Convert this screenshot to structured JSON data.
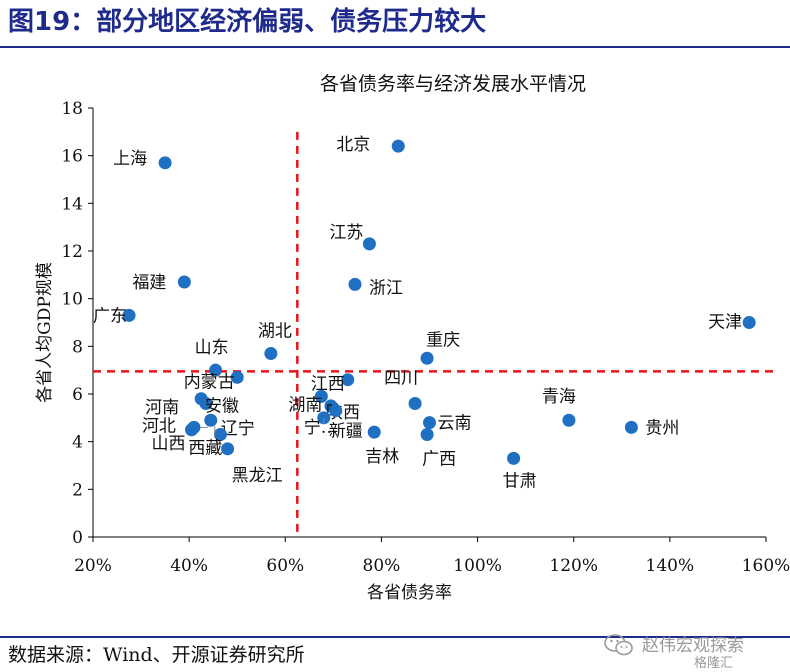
{
  "header": {
    "title": "图19：部分地区经济偏弱、债务压力较大"
  },
  "footer": {
    "source": "数据来源：Wind、开源证券研究所",
    "watermark": "赵伟宏观探索",
    "watermark_sub": "格隆汇",
    "watermark_icon": "wechat-icon"
  },
  "colors": {
    "title": "#1f2b8c",
    "point": "#1f6fc2",
    "refline": "#e8141b",
    "axis": "#000000"
  },
  "chart_data": {
    "type": "scatter",
    "title": "各省债务率与经济发展水平情况",
    "xlabel": "各省债务率",
    "ylabel": "各省人均GDP规模",
    "xlim": [
      20,
      160
    ],
    "ylim": [
      0,
      18
    ],
    "xticks": [
      20,
      40,
      60,
      80,
      100,
      120,
      140,
      160
    ],
    "xtick_labels": [
      "20%",
      "40%",
      "60%",
      "80%",
      "100%",
      "120%",
      "140%",
      "160%"
    ],
    "yticks": [
      0,
      2,
      4,
      6,
      8,
      10,
      12,
      14,
      16,
      18
    ],
    "ytick_labels": [
      "0",
      "2",
      "4",
      "6",
      "8",
      "10",
      "12",
      "14",
      "16",
      "18"
    ],
    "grid": false,
    "reference_lines": {
      "x": 62.5,
      "y": 6.95
    },
    "points": [
      {
        "name": "北京",
        "x": 83.5,
        "y": 16.4
      },
      {
        "name": "上海",
        "x": 35.0,
        "y": 15.7
      },
      {
        "name": "江苏",
        "x": 77.5,
        "y": 12.3
      },
      {
        "name": "福建",
        "x": 39.0,
        "y": 10.7
      },
      {
        "name": "浙江",
        "x": 74.5,
        "y": 10.6
      },
      {
        "name": "广东",
        "x": 27.5,
        "y": 9.3
      },
      {
        "name": "天津",
        "x": 156.5,
        "y": 9.0
      },
      {
        "name": "湖北",
        "x": 57.0,
        "y": 7.7
      },
      {
        "name": "重庆",
        "x": 89.5,
        "y": 7.5
      },
      {
        "name": "山东",
        "x": 45.5,
        "y": 7.0
      },
      {
        "name": "内蒙古",
        "x": 50.0,
        "y": 6.7
      },
      {
        "name": "江西",
        "x": 73.0,
        "y": 6.6
      },
      {
        "name": "河南",
        "x": 42.5,
        "y": 5.8
      },
      {
        "name": "安徽",
        "x": 43.5,
        "y": 5.6
      },
      {
        "name": "湖南",
        "x": 67.5,
        "y": 5.9
      },
      {
        "name": "陕西",
        "x": 69.5,
        "y": 5.5
      },
      {
        "name": "四川",
        "x": 87.0,
        "y": 5.6
      },
      {
        "name": "新疆",
        "x": 70.5,
        "y": 5.3
      },
      {
        "name": "宁夏",
        "x": 68.0,
        "y": 5.0
      },
      {
        "name": "辽宁",
        "x": 44.5,
        "y": 4.9
      },
      {
        "name": "青海",
        "x": 119.0,
        "y": 4.9
      },
      {
        "name": "云南",
        "x": 90.0,
        "y": 4.8
      },
      {
        "name": "贵州",
        "x": 132.0,
        "y": 4.6
      },
      {
        "name": "河北",
        "x": 41.0,
        "y": 4.6
      },
      {
        "name": "吉林",
        "x": 78.5,
        "y": 4.4
      },
      {
        "name": "广西",
        "x": 89.5,
        "y": 4.3
      },
      {
        "name": "山西",
        "x": 40.5,
        "y": 4.5
      },
      {
        "name": "西藏",
        "x": 46.5,
        "y": 4.3
      },
      {
        "name": "黑龙江",
        "x": 48.0,
        "y": 3.7
      },
      {
        "name": "甘肃",
        "x": 107.5,
        "y": 3.3
      }
    ],
    "point_labels": [
      {
        "text": "北京"
      },
      {
        "text": "上海"
      },
      {
        "text": "江苏"
      },
      {
        "text": "福建"
      },
      {
        "text": "浙江"
      },
      {
        "text": "广东"
      },
      {
        "text": "天津"
      },
      {
        "text": "湖北"
      },
      {
        "text": "重庆"
      },
      {
        "text": "山东"
      },
      {
        "text": "内蒙古"
      },
      {
        "text": "江西"
      },
      {
        "text": "河南"
      },
      {
        "text": "安徽"
      },
      {
        "text": "湖南"
      },
      {
        "text": "陕西"
      },
      {
        "text": "四川"
      },
      {
        "text": "新疆"
      },
      {
        "text": "宁…"
      },
      {
        "text": "辽宁"
      },
      {
        "text": "青海"
      },
      {
        "text": "云南"
      },
      {
        "text": "贵州"
      },
      {
        "text": "河北"
      },
      {
        "text": "吉林"
      },
      {
        "text": "广西"
      },
      {
        "text": "山西"
      },
      {
        "text": "西藏"
      },
      {
        "text": "黑龙江"
      },
      {
        "text": "甘肃"
      }
    ]
  }
}
